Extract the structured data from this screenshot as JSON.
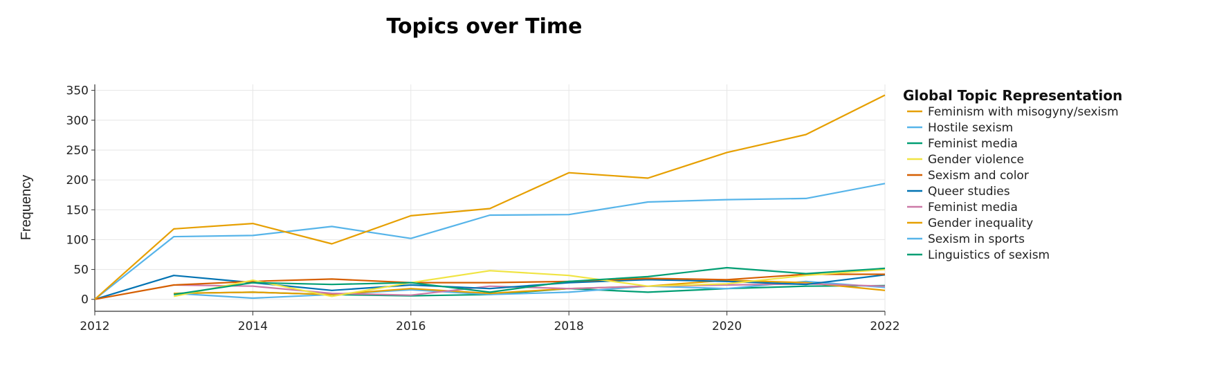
{
  "chart_data": {
    "type": "line",
    "title": "Topics over Time",
    "xlabel": "",
    "ylabel": "Frequency",
    "xlim": [
      2012,
      2022
    ],
    "ylim": [
      -20,
      360
    ],
    "xticks": [
      "2012",
      "2014",
      "2016",
      "2018",
      "2020",
      "2022"
    ],
    "yticks": [
      "0",
      "50",
      "100",
      "150",
      "200",
      "250",
      "300",
      "350"
    ],
    "legend_title": "Global Topic Representation",
    "legend_position": "right",
    "grid": true,
    "series": [
      {
        "name": "Feminism with misogyny/sexism",
        "color": "#E69F00",
        "x": [
          2012,
          2013,
          2014,
          2015,
          2016,
          2017,
          2018,
          2019,
          2020,
          2021,
          2022
        ],
        "y": [
          0,
          118,
          127,
          93,
          140,
          152,
          212,
          203,
          246,
          276,
          342
        ]
      },
      {
        "name": "Hostile sexism",
        "color": "#56B4E9",
        "x": [
          2012,
          2013,
          2014,
          2015,
          2016,
          2017,
          2018,
          2019,
          2020,
          2021,
          2022
        ],
        "y": [
          0,
          105,
          107,
          122,
          102,
          141,
          142,
          163,
          167,
          169,
          194
        ]
      },
      {
        "name": "Feminist media",
        "color": "#009E73",
        "x": [
          2013,
          2014,
          2015,
          2016,
          2017,
          2018,
          2019,
          2020,
          2021,
          2022
        ],
        "y": [
          8,
          28,
          25,
          28,
          12,
          30,
          38,
          53,
          43,
          52
        ]
      },
      {
        "name": "Gender violence",
        "color": "#F0E442",
        "x": [
          2013,
          2014,
          2015,
          2016,
          2017,
          2018,
          2019,
          2020,
          2021,
          2022
        ],
        "y": [
          5,
          32,
          5,
          28,
          48,
          40,
          22,
          26,
          40,
          50
        ]
      },
      {
        "name": "Sexism and color",
        "color": "#D55E00",
        "x": [
          2012,
          2013,
          2014,
          2015,
          2016,
          2017,
          2018,
          2019,
          2020,
          2021,
          2022
        ],
        "y": [
          0,
          24,
          30,
          34,
          28,
          28,
          30,
          35,
          33,
          42,
          42
        ]
      },
      {
        "name": "Queer studies",
        "color": "#0072B2",
        "x": [
          2012,
          2013,
          2014,
          2015,
          2016,
          2017,
          2018,
          2019,
          2020,
          2021,
          2022
        ],
        "y": [
          0,
          40,
          28,
          15,
          24,
          18,
          28,
          33,
          30,
          25,
          41
        ]
      },
      {
        "name": "Feminist media",
        "color": "#CC79A7",
        "x": [
          2013,
          2014,
          2015,
          2016,
          2017,
          2018,
          2019,
          2020,
          2021,
          2022
        ],
        "y": [
          24,
          22,
          10,
          7,
          22,
          18,
          22,
          24,
          26,
          22
        ]
      },
      {
        "name": "Gender inequality",
        "color": "#E69F00",
        "x": [
          2013,
          2014,
          2015,
          2016,
          2017,
          2018,
          2019,
          2020,
          2021,
          2022
        ],
        "y": [
          10,
          12,
          8,
          18,
          10,
          18,
          22,
          32,
          28,
          15
        ]
      },
      {
        "name": "Sexism in sports",
        "color": "#56B4E9",
        "x": [
          2013,
          2014,
          2015,
          2016,
          2017,
          2018,
          2019,
          2020,
          2021,
          2022
        ],
        "y": [
          10,
          2,
          8,
          16,
          8,
          12,
          22,
          18,
          30,
          20
        ]
      },
      {
        "name": "Linguistics of sexism",
        "color": "#009E73",
        "x": [
          2013,
          2014,
          2015,
          2016,
          2017,
          2018,
          2019,
          2020,
          2021,
          2022
        ],
        "y": [
          10,
          12,
          8,
          6,
          8,
          18,
          12,
          18,
          22,
          23
        ]
      }
    ]
  }
}
